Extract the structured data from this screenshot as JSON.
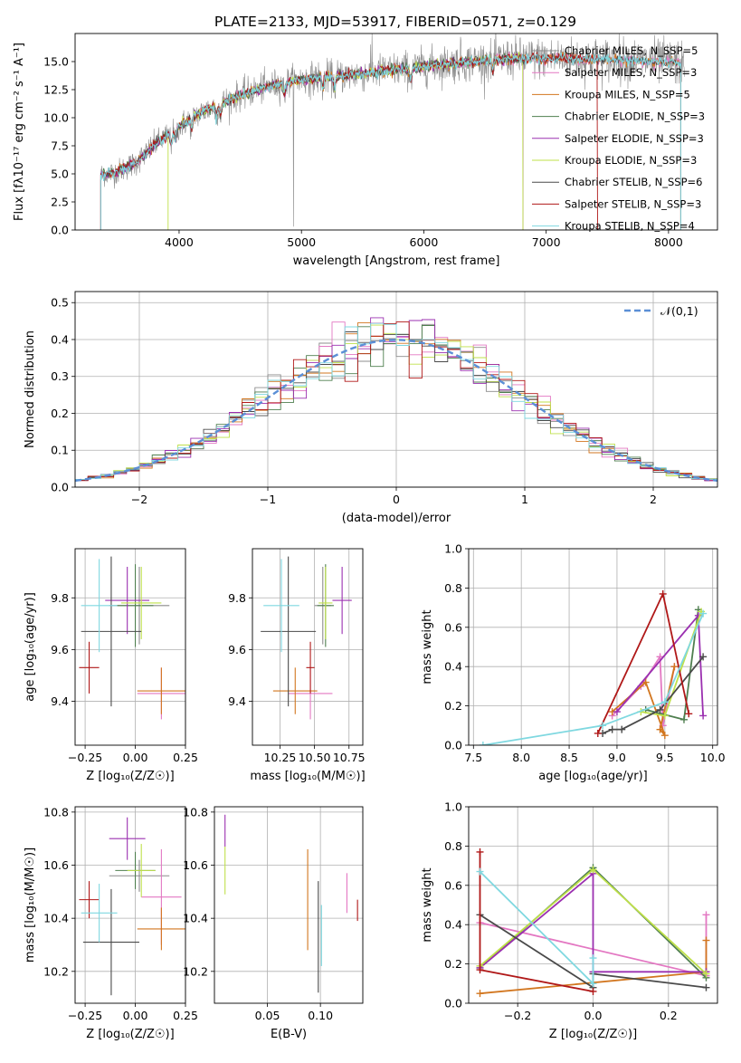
{
  "figure_title": "PLATE=2133, MJD=53917, FIBERID=0571, z=0.129",
  "colors": {
    "chabrier_miles": "#8c8c8c",
    "salpeter_miles": "#e377c2",
    "kroupa_miles": "#d2761f",
    "chabrier_elodie": "#4f7f4f",
    "salpeter_elodie": "#9b30b0",
    "kroupa_elodie": "#bfe04a",
    "chabrier_stelib": "#4a4a4a",
    "salpeter_stelib": "#b01818",
    "kroupa_stelib": "#7fd8e0",
    "normal_curve": "#5b8fd6"
  },
  "chart_data": [
    {
      "type": "line",
      "id": "spectrum",
      "xlabel": "wavelength [Angstrom, rest frame]",
      "ylabel": "Flux [fλ10⁻¹⁷ erg cm⁻² s⁻¹ A⁻¹]",
      "xlim": [
        3150,
        8400
      ],
      "ylim": [
        0,
        17.5
      ],
      "xticks": [
        4000,
        5000,
        6000,
        7000,
        8000
      ],
      "yticks": [
        0.0,
        2.5,
        5.0,
        7.5,
        10.0,
        12.5,
        15.0
      ],
      "legend_position": "top-right",
      "legend": [
        "Chabrier MILES, N_SSP=5",
        "Salpeter MILES, N_SSP=3",
        "Kroupa MILES, N_SSP=5",
        "Chabrier ELODIE, N_SSP=3",
        "Salpeter ELODIE, N_SSP=3",
        "Kroupa ELODIE, N_SSP=3",
        "Chabrier STELIB, N_SSP=6",
        "Salpeter STELIB, N_SSP=3",
        "Kroupa STELIB, N_SSP=4"
      ],
      "continuum": {
        "x": [
          3350,
          3500,
          3650,
          3800,
          3950,
          4100,
          4300,
          4500,
          4700,
          4900,
          5100,
          5300,
          5500,
          5700,
          5900,
          6100,
          6300,
          6500,
          6700,
          6900,
          7100,
          7300,
          7500,
          7700,
          7900,
          8100
        ],
        "y": [
          4.9,
          5.2,
          6.0,
          7.6,
          8.8,
          10.0,
          11.1,
          12.0,
          12.7,
          13.2,
          13.5,
          13.7,
          13.9,
          14.2,
          14.4,
          14.7,
          14.9,
          15.1,
          15.3,
          15.3,
          15.3,
          15.2,
          15.2,
          15.1,
          15.0,
          14.9
        ]
      }
    },
    {
      "type": "line",
      "id": "residual-histogram",
      "xlabel": "(data-model)/error",
      "ylabel": "Normed distribution",
      "xlim": [
        -2.5,
        2.5
      ],
      "ylim": [
        0,
        0.53
      ],
      "xticks": [
        -2,
        -1,
        0,
        1,
        2
      ],
      "yticks": [
        0.0,
        0.1,
        0.2,
        0.3,
        0.4,
        0.5
      ],
      "legend": [
        "𝒩(0,1)"
      ],
      "legend_position": "top-right",
      "bins": [
        -2.5,
        2.5,
        50
      ]
    },
    {
      "type": "scatter",
      "id": "age-vs-Z",
      "xlabel": "Z [log₁₀(Z/Z☉)]",
      "ylabel": "age  [log₁₀(age/yr)]",
      "xlim": [
        -0.3,
        0.25
      ],
      "ylim": [
        9.23,
        9.99
      ],
      "xticks": [
        -0.25,
        0.0,
        0.25
      ],
      "yticks": [
        9.4,
        9.6,
        9.8
      ],
      "points": [
        {
          "x": 0.02,
          "y": 9.77,
          "xerr": 0.15,
          "yerr": 0.15,
          "color": "#8c8c8c"
        },
        {
          "x": 0.13,
          "y": 9.43,
          "xerr": 0.12,
          "yerr": 0.1,
          "color": "#e377c2"
        },
        {
          "x": 0.13,
          "y": 9.44,
          "xerr": 0.12,
          "yerr": 0.09,
          "color": "#d2761f"
        },
        {
          "x": 0.0,
          "y": 9.77,
          "xerr": 0.09,
          "yerr": 0.16,
          "color": "#4f7f4f"
        },
        {
          "x": -0.04,
          "y": 9.79,
          "xerr": 0.11,
          "yerr": 0.13,
          "color": "#9b30b0"
        },
        {
          "x": 0.03,
          "y": 9.78,
          "xerr": 0.1,
          "yerr": 0.14,
          "color": "#bfe04a"
        },
        {
          "x": -0.12,
          "y": 9.67,
          "xerr": 0.15,
          "yerr": 0.29,
          "color": "#4a4a4a"
        },
        {
          "x": -0.23,
          "y": 9.53,
          "xerr": 0.05,
          "yerr": 0.1,
          "color": "#b01818"
        },
        {
          "x": -0.18,
          "y": 9.77,
          "xerr": 0.09,
          "yerr": 0.18,
          "color": "#7fd8e0"
        }
      ]
    },
    {
      "type": "scatter",
      "id": "age-vs-mass",
      "xlabel": "mass [log₁₀(M/M☉)]",
      "ylabel": "",
      "xlim": [
        10.05,
        10.85
      ],
      "ylim": [
        9.23,
        9.99
      ],
      "xticks": [
        10.25,
        10.5,
        10.75
      ],
      "yticks": [
        9.4,
        9.6,
        9.8
      ],
      "points": [
        {
          "x": 10.56,
          "y": 9.77,
          "xerr": 0.06,
          "yerr": 0.15,
          "color": "#8c8c8c"
        },
        {
          "x": 10.47,
          "y": 9.43,
          "xerr": 0.16,
          "yerr": 0.1,
          "color": "#e377c2"
        },
        {
          "x": 10.36,
          "y": 9.44,
          "xerr": 0.16,
          "yerr": 0.09,
          "color": "#d2761f"
        },
        {
          "x": 10.58,
          "y": 9.77,
          "xerr": 0.06,
          "yerr": 0.16,
          "color": "#4f7f4f"
        },
        {
          "x": 10.7,
          "y": 9.79,
          "xerr": 0.07,
          "yerr": 0.13,
          "color": "#9b30b0"
        },
        {
          "x": 10.58,
          "y": 9.78,
          "xerr": 0.05,
          "yerr": 0.14,
          "color": "#bfe04a"
        },
        {
          "x": 10.31,
          "y": 9.67,
          "xerr": 0.2,
          "yerr": 0.29,
          "color": "#4a4a4a"
        },
        {
          "x": 10.47,
          "y": 9.53,
          "xerr": 0.03,
          "yerr": 0.1,
          "color": "#b01818"
        },
        {
          "x": 10.26,
          "y": 9.77,
          "xerr": 0.13,
          "yerr": 0.18,
          "color": "#7fd8e0"
        }
      ]
    },
    {
      "type": "line",
      "id": "mass-weight-vs-age",
      "xlabel": "age  [log₁₀(age/yr)]",
      "ylabel": "mass weight",
      "xlim": [
        7.45,
        10.05
      ],
      "ylim": [
        0,
        1.0
      ],
      "xticks": [
        7.5,
        8.0,
        8.5,
        9.0,
        9.5,
        10.0
      ],
      "yticks": [
        0.0,
        0.2,
        0.4,
        0.6,
        0.8,
        1.0
      ],
      "series": [
        {
          "color": "#e377c2",
          "x": [
            8.95,
            9.25,
            9.45,
            9.48,
            9.6
          ],
          "y": [
            0.15,
            0.3,
            0.45,
            0.1,
            0.4
          ]
        },
        {
          "color": "#d2761f",
          "x": [
            8.95,
            9.3,
            9.5,
            9.45,
            9.6
          ],
          "y": [
            0.17,
            0.32,
            0.05,
            0.08,
            0.4
          ]
        },
        {
          "color": "#4f7f4f",
          "x": [
            9.3,
            9.7,
            9.85
          ],
          "y": [
            0.18,
            0.13,
            0.69
          ]
        },
        {
          "color": "#9b30b0",
          "x": [
            9.0,
            9.85,
            9.9
          ],
          "y": [
            0.17,
            0.66,
            0.15
          ]
        },
        {
          "color": "#bfe04a",
          "x": [
            9.25,
            9.5,
            9.88
          ],
          "y": [
            0.17,
            0.15,
            0.68
          ]
        },
        {
          "color": "#4a4a4a",
          "x": [
            8.85,
            8.95,
            9.05,
            9.45,
            9.9
          ],
          "y": [
            0.06,
            0.08,
            0.08,
            0.18,
            0.45
          ]
        },
        {
          "color": "#b01818",
          "x": [
            8.8,
            9.48,
            9.75
          ],
          "y": [
            0.06,
            0.77,
            0.16
          ]
        },
        {
          "color": "#7fd8e0",
          "x": [
            7.6,
            8.85,
            9.5,
            9.9
          ],
          "y": [
            0.0,
            0.1,
            0.22,
            0.67
          ]
        }
      ]
    },
    {
      "type": "scatter",
      "id": "mass-vs-Z",
      "xlabel": "Z [log₁₀(Z/Z☉)]",
      "ylabel": "mass [log₁₀(M/M☉)]",
      "xlim": [
        -0.3,
        0.25
      ],
      "ylim": [
        10.08,
        10.82
      ],
      "xticks": [
        -0.25,
        0.0,
        0.25
      ],
      "yticks": [
        10.2,
        10.4,
        10.6,
        10.8
      ],
      "points": [
        {
          "x": 0.02,
          "y": 10.56,
          "xerr": 0.15,
          "yerr": 0.06,
          "color": "#8c8c8c"
        },
        {
          "x": 0.13,
          "y": 10.48,
          "xerr": 0.1,
          "yerr": 0.18,
          "color": "#e377c2"
        },
        {
          "x": 0.13,
          "y": 10.36,
          "xerr": 0.12,
          "yerr": 0.08,
          "color": "#d2761f"
        },
        {
          "x": 0.0,
          "y": 10.58,
          "xerr": 0.1,
          "yerr": 0.07,
          "color": "#4f7f4f"
        },
        {
          "x": -0.04,
          "y": 10.7,
          "xerr": 0.09,
          "yerr": 0.08,
          "color": "#9b30b0"
        },
        {
          "x": 0.03,
          "y": 10.58,
          "xerr": 0.07,
          "yerr": 0.1,
          "color": "#bfe04a"
        },
        {
          "x": -0.12,
          "y": 10.31,
          "xerr": 0.14,
          "yerr": 0.2,
          "color": "#4a4a4a"
        },
        {
          "x": -0.23,
          "y": 10.47,
          "xerr": 0.05,
          "yerr": 0.07,
          "color": "#b01818"
        },
        {
          "x": -0.18,
          "y": 10.42,
          "xerr": 0.09,
          "yerr": 0.11,
          "color": "#7fd8e0"
        }
      ]
    },
    {
      "type": "scatter",
      "id": "mass-vs-EBV",
      "xlabel": "E(B-V)",
      "ylabel": "",
      "xlim": [
        0.0,
        0.14
      ],
      "ylim": [
        10.08,
        10.82
      ],
      "xticks": [
        0.05,
        0.1
      ],
      "yticks": [
        10.2,
        10.4,
        10.6,
        10.8
      ],
      "segments": [
        {
          "x": 0.01,
          "y0": 10.67,
          "y1": 10.79,
          "color": "#9b30b0"
        },
        {
          "x": 0.01,
          "y0": 10.49,
          "y1": 10.67,
          "color": "#bfe04a"
        },
        {
          "x": 0.088,
          "y0": 10.28,
          "y1": 10.66,
          "color": "#d2761f"
        },
        {
          "x": 0.098,
          "y0": 10.12,
          "y1": 10.54,
          "color": "#4a4a4a"
        },
        {
          "x": 0.101,
          "y0": 10.22,
          "y1": 10.45,
          "color": "#7fd8e0"
        },
        {
          "x": 0.125,
          "y0": 10.42,
          "y1": 10.57,
          "color": "#e377c2"
        },
        {
          "x": 0.135,
          "y0": 10.39,
          "y1": 10.47,
          "color": "#b01818"
        }
      ]
    },
    {
      "type": "line",
      "id": "mass-weight-vs-Z",
      "xlabel": "Z [log₁₀(Z/Z☉)]",
      "ylabel": "mass weight",
      "xlim": [
        -0.33,
        0.33
      ],
      "ylim": [
        0,
        1.0
      ],
      "xticks": [
        -0.2,
        0.0,
        0.2
      ],
      "yticks": [
        0.0,
        0.2,
        0.4,
        0.6,
        0.8,
        1.0
      ],
      "series": [
        {
          "color": "#e377c2",
          "x": [
            -0.3,
            0.3,
            0.3
          ],
          "y": [
            0.41,
            0.14,
            0.45
          ]
        },
        {
          "color": "#d2761f",
          "x": [
            -0.3,
            0.3,
            0.3
          ],
          "y": [
            0.05,
            0.16,
            0.32
          ]
        },
        {
          "color": "#4f7f4f",
          "x": [
            -0.3,
            0.0,
            0.3
          ],
          "y": [
            0.18,
            0.69,
            0.13
          ]
        },
        {
          "color": "#9b30b0",
          "x": [
            -0.3,
            0.0,
            0.0,
            0.3
          ],
          "y": [
            0.18,
            0.66,
            0.16,
            0.16
          ]
        },
        {
          "color": "#bfe04a",
          "x": [
            -0.3,
            0.0,
            0.3
          ],
          "y": [
            0.19,
            0.68,
            0.15
          ]
        },
        {
          "color": "#4a4a4a",
          "x": [
            -0.3,
            0.0,
            0.0,
            0.3
          ],
          "y": [
            0.45,
            0.08,
            0.15,
            0.08
          ]
        },
        {
          "color": "#b01818",
          "x": [
            -0.3,
            -0.3,
            0.0
          ],
          "y": [
            0.77,
            0.17,
            0.06
          ]
        },
        {
          "color": "#7fd8e0",
          "x": [
            -0.3,
            0.0,
            0.0
          ],
          "y": [
            0.67,
            0.1,
            0.23
          ]
        }
      ]
    }
  ]
}
